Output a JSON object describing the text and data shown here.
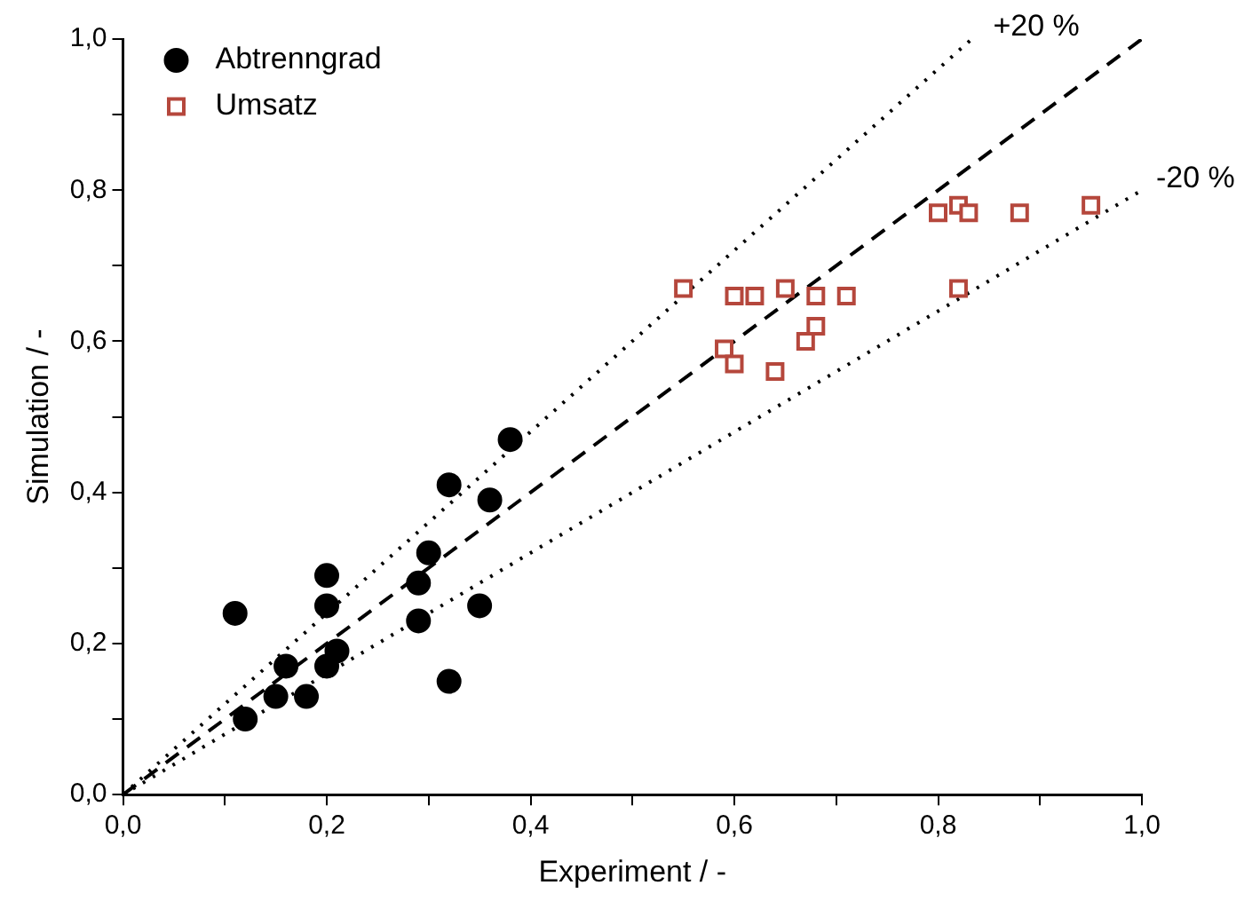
{
  "chart_data": {
    "type": "scatter",
    "xlabel": "Experiment / -",
    "ylabel": "Simulation / -",
    "xlim": [
      0,
      1
    ],
    "ylim": [
      0,
      1
    ],
    "xticks": [
      {
        "value": 0,
        "label": "0,0"
      },
      {
        "value": 0.1,
        "label": null
      },
      {
        "value": 0.2,
        "label": "0,2"
      },
      {
        "value": 0.3,
        "label": null
      },
      {
        "value": 0.4,
        "label": "0,4"
      },
      {
        "value": 0.5,
        "label": null
      },
      {
        "value": 0.6,
        "label": "0,6"
      },
      {
        "value": 0.7,
        "label": null
      },
      {
        "value": 0.8,
        "label": "0,8"
      },
      {
        "value": 0.9,
        "label": null
      },
      {
        "value": 1,
        "label": "1,0"
      }
    ],
    "yticks": [
      {
        "value": 0,
        "label": "0,0"
      },
      {
        "value": 0.1,
        "label": null
      },
      {
        "value": 0.2,
        "label": "0,2"
      },
      {
        "value": 0.3,
        "label": null
      },
      {
        "value": 0.4,
        "label": "0,4"
      },
      {
        "value": 0.5,
        "label": null
      },
      {
        "value": 0.6,
        "label": "0,6"
      },
      {
        "value": 0.7,
        "label": null
      },
      {
        "value": 0.8,
        "label": "0,8"
      },
      {
        "value": 0.9,
        "label": null
      },
      {
        "value": 1,
        "label": "1,0"
      }
    ],
    "grid": false,
    "legend": "top left",
    "annotations": [
      {
        "text": "+20 %",
        "x": 0.84,
        "y": 1.0
      },
      {
        "text": "-20 %",
        "x": 1.0,
        "y": 0.8
      }
    ],
    "series": [
      {
        "name": "Abtrenngrad",
        "color": "#000000",
        "marker": "circle",
        "x": [
          0.38,
          0.32,
          0.36,
          0.3,
          0.29,
          0.2,
          0.2,
          0.11,
          0.35,
          0.29,
          0.21,
          0.16,
          0.2,
          0.15,
          0.18,
          0.12,
          0.32
        ],
        "values": [
          0.47,
          0.41,
          0.39,
          0.32,
          0.28,
          0.29,
          0.25,
          0.24,
          0.25,
          0.23,
          0.19,
          0.17,
          0.17,
          0.13,
          0.13,
          0.1,
          0.15
        ]
      },
      {
        "name": "Umsatz",
        "color": "#b5473c",
        "marker": "square",
        "x": [
          0.55,
          0.6,
          0.62,
          0.65,
          0.68,
          0.71,
          0.68,
          0.67,
          0.59,
          0.6,
          0.64,
          0.8,
          0.82,
          0.83,
          0.88,
          0.95,
          0.82
        ],
        "values": [
          0.67,
          0.66,
          0.66,
          0.67,
          0.66,
          0.66,
          0.62,
          0.6,
          0.59,
          0.57,
          0.56,
          0.77,
          0.78,
          0.77,
          0.77,
          0.78,
          0.67
        ]
      },
      {
        "type": "line",
        "color": "#000000",
        "line_style": "dotted",
        "marker": "none",
        "x": [
          0,
          0.833
        ],
        "values": [
          0,
          1.0
        ]
      },
      {
        "type": "line",
        "color": "#000000",
        "line_style": "dashed",
        "marker": "none",
        "x": [
          0,
          1
        ],
        "values": [
          0,
          1
        ]
      },
      {
        "type": "line",
        "color": "#000000",
        "line_style": "dotted",
        "marker": "none",
        "x": [
          0,
          1
        ],
        "values": [
          0,
          0.8
        ]
      }
    ]
  }
}
